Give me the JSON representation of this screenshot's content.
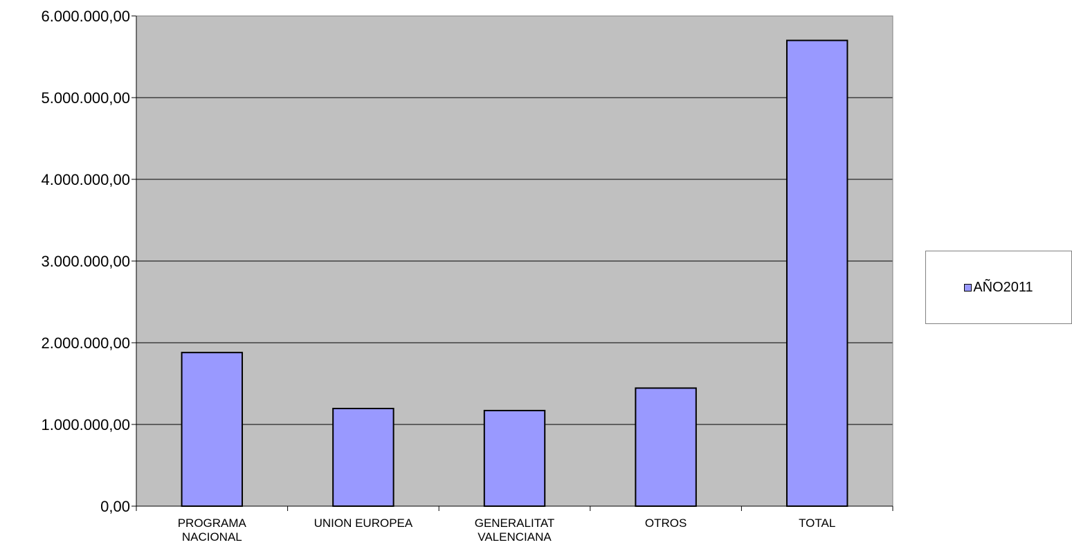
{
  "chart_data": {
    "type": "bar",
    "categories": [
      [
        "PROGRAMA",
        "NACIONAL"
      ],
      [
        "UNION EUROPEA"
      ],
      [
        "GENERALITAT",
        "VALENCIANA"
      ],
      [
        "OTROS"
      ],
      [
        "TOTAL"
      ]
    ],
    "series": [
      {
        "name": "AÑO2011",
        "values": [
          1880000,
          1195000,
          1170000,
          1445000,
          5700000
        ]
      }
    ],
    "ylim": [
      0,
      6000000
    ],
    "yticks": [
      0,
      1000000,
      2000000,
      3000000,
      4000000,
      5000000,
      6000000
    ],
    "ytick_labels": [
      "0,00",
      "1.000.000,00",
      "2.000.000,00",
      "3.000.000,00",
      "4.000.000,00",
      "5.000.000,00",
      "6.000.000,00"
    ],
    "grid": true,
    "legend_position": "right",
    "colors": {
      "bar": "#9999ff",
      "plot_background": "#c0c0c0",
      "gridline": "#000000"
    }
  }
}
